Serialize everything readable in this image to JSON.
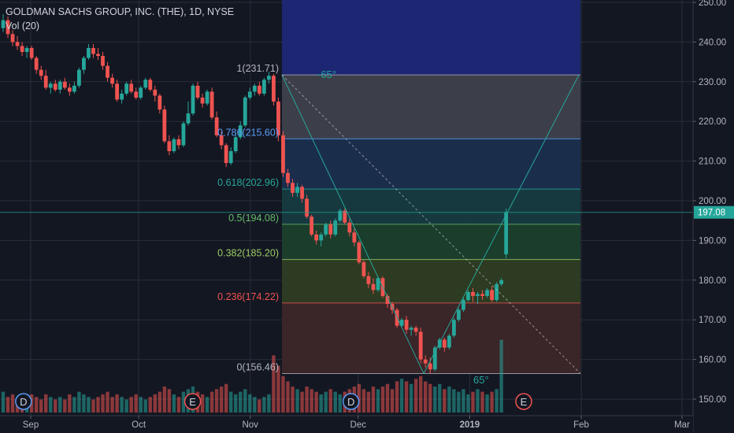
{
  "legend": {
    "title": "GOLDMAN SACHS GROUP, INC. (THE), 1D, NYSE",
    "volume": "Vol (20)"
  },
  "colors": {
    "background": "#131722",
    "up": "#26a69a",
    "down": "#ef5350",
    "grid": "#2a2e39",
    "price_line": "#26a69a",
    "fib_line": "#787b86"
  },
  "chart_data": {
    "type": "candlestick",
    "title": "GOLDMAN SACHS GROUP, INC. (THE), 1D, NYSE",
    "ylim": [
      146,
      251
    ],
    "y_ticks": [
      "150.00",
      "160.00",
      "170.00",
      "180.00",
      "190.00",
      "200.00",
      "210.00",
      "220.00",
      "230.00",
      "240.00",
      "250.00"
    ],
    "x_labels": [
      {
        "label": "Sep",
        "date": "2018-09-01"
      },
      {
        "label": "Oct",
        "date": "2018-10-01"
      },
      {
        "label": "Nov",
        "date": "2018-11-01"
      },
      {
        "label": "Dec",
        "date": "2018-12-01"
      },
      {
        "label": "2019",
        "date": "2019-01-01"
      },
      {
        "label": "Feb",
        "date": "2019-02-01"
      },
      {
        "label": "Mar",
        "date": "2019-03-01"
      }
    ],
    "last_price": "197.08",
    "candles": [
      [
        243.5,
        247.0,
        242.5,
        245.5
      ],
      [
        245.5,
        246.5,
        241.0,
        242.0
      ],
      [
        242.0,
        243.0,
        239.0,
        240.0
      ],
      [
        240.0,
        241.5,
        238.0,
        239.0
      ],
      [
        239.0,
        240.0,
        236.5,
        237.5
      ],
      [
        237.5,
        239.0,
        236.0,
        238.5
      ],
      [
        238.5,
        239.0,
        235.5,
        236.0
      ],
      [
        236.0,
        236.5,
        232.0,
        233.0
      ],
      [
        233.0,
        234.0,
        230.5,
        231.5
      ],
      [
        231.5,
        233.0,
        228.0,
        228.5
      ],
      [
        228.5,
        230.0,
        227.0,
        229.5
      ],
      [
        229.5,
        230.5,
        227.5,
        228.0
      ],
      [
        228.0,
        230.5,
        227.0,
        230.0
      ],
      [
        230.0,
        231.0,
        228.0,
        228.5
      ],
      [
        228.5,
        229.5,
        226.5,
        227.5
      ],
      [
        227.5,
        230.0,
        227.0,
        229.0
      ],
      [
        229.0,
        233.5,
        228.5,
        233.0
      ],
      [
        233.0,
        236.5,
        232.0,
        236.0
      ],
      [
        236.0,
        239.5,
        235.5,
        238.5
      ],
      [
        238.5,
        239.5,
        236.0,
        237.0
      ],
      [
        237.0,
        238.5,
        235.5,
        236.5
      ],
      [
        236.5,
        237.5,
        233.0,
        234.0
      ],
      [
        234.0,
        235.0,
        230.0,
        231.0
      ],
      [
        231.0,
        232.0,
        228.5,
        229.5
      ],
      [
        229.5,
        230.5,
        225.0,
        225.5
      ],
      [
        225.5,
        228.0,
        224.5,
        227.0
      ],
      [
        227.0,
        230.0,
        226.5,
        229.5
      ],
      [
        229.5,
        230.5,
        227.0,
        227.5
      ],
      [
        227.5,
        228.5,
        225.5,
        226.0
      ],
      [
        226.0,
        229.0,
        225.5,
        228.5
      ],
      [
        228.5,
        231.0,
        228.0,
        230.5
      ],
      [
        230.5,
        231.0,
        227.5,
        228.0
      ],
      [
        228.0,
        229.0,
        225.0,
        226.5
      ],
      [
        226.5,
        227.0,
        222.0,
        223.0
      ],
      [
        223.0,
        224.0,
        214.5,
        215.0
      ],
      [
        215.0,
        216.5,
        211.5,
        212.5
      ],
      [
        212.5,
        216.0,
        212.0,
        215.5
      ],
      [
        215.5,
        216.5,
        213.0,
        214.0
      ],
      [
        214.0,
        220.0,
        213.5,
        219.5
      ],
      [
        219.5,
        225.0,
        219.0,
        222.0
      ],
      [
        222.0,
        229.5,
        221.5,
        229.0
      ],
      [
        229.0,
        230.0,
        225.5,
        226.0
      ],
      [
        226.0,
        227.0,
        223.5,
        224.5
      ],
      [
        224.5,
        228.0,
        224.0,
        227.5
      ],
      [
        227.5,
        228.5,
        220.5,
        221.0
      ],
      [
        221.0,
        222.5,
        216.0,
        216.5
      ],
      [
        216.5,
        217.5,
        213.0,
        214.0
      ],
      [
        214.0,
        214.5,
        208.5,
        209.5
      ],
      [
        209.5,
        213.5,
        209.0,
        212.5
      ],
      [
        212.5,
        217.0,
        212.0,
        216.0
      ],
      [
        216.0,
        220.0,
        215.5,
        219.0
      ],
      [
        219.0,
        226.5,
        218.5,
        226.0
      ],
      [
        226.0,
        228.5,
        225.5,
        227.5
      ],
      [
        227.5,
        229.5,
        226.5,
        229.0
      ],
      [
        229.0,
        230.0,
        226.5,
        227.0
      ],
      [
        227.0,
        231.0,
        226.5,
        230.5
      ],
      [
        230.5,
        232.5,
        229.5,
        231.5
      ],
      [
        231.5,
        232.0,
        224.0,
        225.0
      ],
      [
        225.0,
        226.0,
        215.0,
        216.5
      ],
      [
        216.5,
        217.5,
        206.0,
        207.0
      ],
      [
        207.0,
        208.0,
        203.5,
        204.5
      ],
      [
        204.5,
        205.5,
        201.0,
        202.0
      ],
      [
        202.0,
        204.5,
        201.0,
        203.5
      ],
      [
        203.5,
        204.0,
        199.5,
        200.5
      ],
      [
        200.5,
        201.5,
        195.5,
        196.0
      ],
      [
        196.0,
        196.5,
        191.0,
        191.5
      ],
      [
        191.5,
        192.5,
        189.0,
        190.0
      ],
      [
        190.0,
        192.0,
        188.5,
        191.5
      ],
      [
        191.5,
        194.5,
        191.0,
        194.0
      ],
      [
        194.0,
        195.0,
        190.5,
        191.5
      ],
      [
        191.5,
        195.5,
        191.0,
        195.0
      ],
      [
        195.0,
        198.0,
        194.5,
        197.5
      ],
      [
        197.5,
        198.0,
        194.0,
        194.5
      ],
      [
        194.5,
        195.5,
        191.0,
        192.0
      ],
      [
        192.0,
        193.0,
        188.5,
        189.5
      ],
      [
        189.5,
        190.0,
        184.0,
        184.5
      ],
      [
        184.5,
        185.0,
        180.5,
        181.0
      ],
      [
        181.0,
        182.0,
        178.0,
        179.0
      ],
      [
        179.0,
        180.5,
        176.5,
        177.5
      ],
      [
        177.5,
        181.0,
        177.0,
        180.5
      ],
      [
        180.5,
        181.0,
        175.5,
        176.0
      ],
      [
        176.0,
        176.5,
        173.0,
        174.0
      ],
      [
        174.0,
        174.5,
        171.5,
        172.5
      ],
      [
        172.5,
        173.0,
        168.0,
        168.5
      ],
      [
        168.5,
        170.5,
        168.0,
        170.0
      ],
      [
        170.0,
        171.0,
        166.5,
        167.5
      ],
      [
        167.5,
        168.5,
        166.0,
        168.0
      ],
      [
        168.0,
        168.5,
        166.0,
        167.0
      ],
      [
        167.0,
        168.0,
        159.0,
        160.0
      ],
      [
        160.0,
        161.0,
        158.0,
        159.0
      ],
      [
        159.0,
        160.5,
        156.5,
        157.5
      ],
      [
        157.5,
        163.5,
        157.0,
        163.0
      ],
      [
        163.0,
        165.5,
        162.5,
        165.0
      ],
      [
        165.0,
        165.5,
        162.0,
        163.0
      ],
      [
        163.0,
        166.5,
        162.5,
        166.0
      ],
      [
        166.0,
        170.5,
        165.5,
        170.0
      ],
      [
        170.0,
        173.0,
        169.5,
        172.5
      ],
      [
        172.5,
        175.5,
        172.0,
        175.0
      ],
      [
        175.0,
        177.5,
        174.5,
        177.0
      ],
      [
        177.0,
        178.0,
        174.5,
        176.0
      ],
      [
        176.0,
        177.0,
        174.0,
        176.5
      ],
      [
        176.5,
        177.5,
        175.0,
        176.0
      ],
      [
        176.0,
        178.0,
        175.5,
        177.5
      ],
      [
        177.5,
        178.5,
        174.5,
        175.0
      ],
      [
        175.0,
        179.5,
        174.5,
        179.0
      ],
      [
        179.0,
        180.5,
        178.5,
        180.0
      ],
      [
        186.5,
        198.0,
        185.5,
        197.1
      ]
    ],
    "volume": [
      8,
      6,
      7,
      5,
      6,
      5,
      7,
      6,
      5,
      7,
      6,
      5,
      6,
      5,
      7,
      6,
      8,
      7,
      6,
      5,
      6,
      7,
      8,
      6,
      7,
      6,
      5,
      6,
      7,
      6,
      5,
      6,
      7,
      8,
      10,
      9,
      7,
      6,
      8,
      9,
      10,
      8,
      7,
      6,
      8,
      9,
      10,
      11,
      8,
      7,
      8,
      9,
      7,
      6,
      5,
      6,
      7,
      22,
      18,
      14,
      12,
      10,
      9,
      8,
      10,
      9,
      8,
      7,
      8,
      9,
      8,
      7,
      8,
      9,
      10,
      11,
      9,
      8,
      10,
      9,
      10,
      11,
      9,
      12,
      13,
      12,
      11,
      13,
      14,
      12,
      11,
      10,
      11,
      9,
      10,
      9,
      8,
      9,
      7,
      8,
      9,
      8,
      7,
      8,
      9,
      28
    ],
    "fibonacci": [
      {
        "label": "1(231.71)",
        "level": 1,
        "value": 231.71,
        "text_color": "#b2b5be",
        "fill": "#3c3f4a"
      },
      {
        "label": "0.786(215.60)",
        "level": 0.786,
        "value": 215.6,
        "text_color": "#5b9cf6",
        "fill": "#1a2e4c"
      },
      {
        "label": "0.618(202.96)",
        "level": 0.618,
        "value": 202.96,
        "text_color": "#26a69a",
        "fill": "#16393f"
      },
      {
        "label": "0.5(194.08)",
        "level": 0.5,
        "value": 194.08,
        "text_color": "#66bb6a",
        "fill": "#1b3d2c"
      },
      {
        "label": "0.382(185.20)",
        "level": 0.382,
        "value": 185.2,
        "text_color": "#9ccc65",
        "fill": "#2d3b22"
      },
      {
        "label": "0.236(174.22)",
        "level": 0.236,
        "value": 174.22,
        "text_color": "#ef5350",
        "fill": "#3a2528"
      },
      {
        "label": "0(156.46)",
        "level": 0,
        "value": 156.46,
        "text_color": "#b2b5be",
        "fill": "#3f1f26"
      }
    ],
    "angle_labels": [
      "-65°",
      "65°"
    ],
    "event_markers": [
      {
        "label": "D",
        "date": "2018-08-30"
      },
      {
        "label": "E",
        "date": "2018-10-16"
      },
      {
        "label": "D",
        "date": "2018-11-29"
      },
      {
        "label": "E",
        "date": "2019-01-16"
      }
    ]
  }
}
